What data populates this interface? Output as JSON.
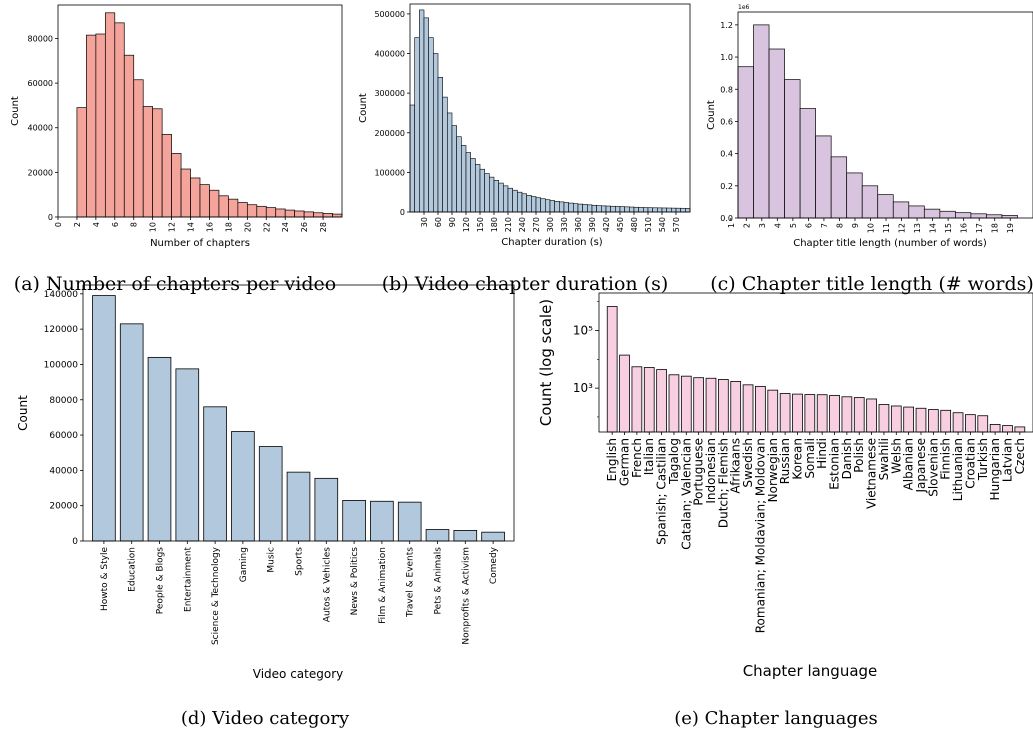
{
  "chart_data": [
    {
      "id": "a",
      "type": "bar",
      "caption": "(a) Number of chapters per video",
      "xlabel": "Number of chapters",
      "ylabel": "Count",
      "color": "#f4a49b",
      "x_ticks": [
        "0",
        "2",
        "4",
        "6",
        "8",
        "10",
        "12",
        "14",
        "16",
        "18",
        "20",
        "22",
        "24",
        "26",
        "28"
      ],
      "y_ticks": [
        "0",
        "20000",
        "40000",
        "60000",
        "80000"
      ],
      "xlim": [
        0,
        30
      ],
      "ylim": [
        0,
        95000
      ],
      "categories": [
        2,
        3,
        4,
        5,
        6,
        7,
        8,
        9,
        10,
        11,
        12,
        13,
        14,
        15,
        16,
        17,
        18,
        19,
        20,
        21,
        22,
        23,
        24,
        25,
        26,
        27,
        28,
        29
      ],
      "values": [
        49000,
        81500,
        82000,
        91500,
        87000,
        72500,
        61500,
        49500,
        48500,
        37000,
        28500,
        21500,
        17500,
        14500,
        12000,
        9500,
        8000,
        6500,
        5500,
        4800,
        4200,
        3600,
        3100,
        2700,
        2300,
        1900,
        1600,
        1300
      ]
    },
    {
      "id": "b",
      "type": "bar",
      "caption": "(b) Video chapter duration (s)",
      "xlabel": "Chapter duration (s)",
      "ylabel": "Count",
      "color": "#b2c9dd",
      "x_ticks": [
        "30",
        "60",
        "90",
        "120",
        "150",
        "180",
        "210",
        "240",
        "270",
        "300",
        "330",
        "360",
        "390",
        "420",
        "450",
        "480",
        "510",
        "540",
        "570"
      ],
      "y_ticks": [
        "0",
        "100000",
        "200000",
        "300000",
        "400000",
        "500000"
      ],
      "xlim": [
        0,
        600
      ],
      "ylim": [
        0,
        525000
      ],
      "bin_width": 10,
      "values": [
        270000,
        440000,
        510000,
        490000,
        440000,
        400000,
        340000,
        290000,
        250000,
        218000,
        190000,
        168000,
        150000,
        135000,
        120000,
        108000,
        97000,
        88000,
        80000,
        73000,
        66000,
        60000,
        55000,
        50000,
        46000,
        42000,
        39000,
        36000,
        33500,
        31000,
        29000,
        27000,
        25500,
        24000,
        22500,
        21000,
        20000,
        19000,
        18000,
        17000,
        16000,
        15500,
        15000,
        14500,
        14000,
        13500,
        13000,
        12500,
        12000,
        11500,
        11000,
        10800,
        10600,
        10400,
        10200,
        10000,
        9800,
        9600,
        9400,
        9200
      ]
    },
    {
      "id": "c",
      "type": "bar",
      "caption": "(c) Chapter title length (# words)",
      "xlabel": "Chapter title length (number of words)",
      "ylabel": "Count",
      "y_offset_label": "1e6",
      "color": "#d9c4e0",
      "x_ticks": [
        "1",
        "2",
        "3",
        "4",
        "5",
        "6",
        "7",
        "8",
        "9",
        "10",
        "11",
        "12",
        "13",
        "14",
        "15",
        "16",
        "17",
        "18",
        "19"
      ],
      "y_ticks": [
        "0.0",
        "0.2",
        "0.4",
        "0.6",
        "0.8",
        "1.0",
        "1.2"
      ],
      "xlim": [
        1,
        20
      ],
      "ylim": [
        0,
        1.28
      ],
      "values": [
        0.94,
        1.2,
        1.05,
        0.86,
        0.68,
        0.51,
        0.38,
        0.28,
        0.2,
        0.145,
        0.1,
        0.075,
        0.055,
        0.042,
        0.033,
        0.026,
        0.02,
        0.016
      ]
    },
    {
      "id": "d",
      "type": "bar",
      "caption": "(d) Video category",
      "xlabel": "Video category",
      "ylabel": "Count",
      "color": "#b2c9dd",
      "y_ticks": [
        "0",
        "20000",
        "40000",
        "60000",
        "80000",
        "100000",
        "120000",
        "140000"
      ],
      "ylim": [
        0,
        145000
      ],
      "categories": [
        "Howto & Style",
        "Education",
        "People & Blogs",
        "Entertainment",
        "Science & Technology",
        "Gaming",
        "Music",
        "Sports",
        "Autos & Vehicles",
        "News & Politics",
        "Film & Animation",
        "Travel & Events",
        "Pets & Animals",
        "Nonprofits & Activism",
        "Comedy"
      ],
      "values": [
        139000,
        123000,
        104000,
        97500,
        76000,
        62000,
        53500,
        39000,
        35500,
        23000,
        22500,
        22000,
        6500,
        6000,
        5000
      ]
    },
    {
      "id": "e",
      "type": "bar",
      "caption": "(e) Chapter languages",
      "xlabel": "Chapter language",
      "ylabel": "Count (log scale)",
      "scale": "log",
      "color": "#f8cfe0",
      "y_ticks": [
        "10³",
        "10⁵"
      ],
      "ylim": [
        30,
        2000000
      ],
      "categories": [
        "English",
        "German",
        "French",
        "Italian",
        "Spanish; Castilian",
        "Tagalog",
        "Catalan; Valencian",
        "Portuguese",
        "Indonesian",
        "Dutch; Flemish",
        "Afrikaans",
        "Swedish",
        "Romanian; Moldavian; Moldovan",
        "Norwegian",
        "Russian",
        "Korean",
        "Somali",
        "Hindi",
        "Estonian",
        "Danish",
        "Polish",
        "Vietnamese",
        "Swahili",
        "Welsh",
        "Albanian",
        "Japanese",
        "Slovenian",
        "Finnish",
        "Lithuanian",
        "Croatian",
        "Turkish",
        "Hungarian",
        "Latvian",
        "Czech"
      ],
      "values": [
        680000,
        14000,
        5500,
        5200,
        4400,
        2900,
        2600,
        2300,
        2200,
        2000,
        1700,
        1300,
        1150,
        850,
        650,
        620,
        600,
        590,
        560,
        500,
        470,
        420,
        270,
        240,
        220,
        200,
        180,
        170,
        140,
        120,
        110,
        55,
        50,
        45
      ]
    }
  ]
}
